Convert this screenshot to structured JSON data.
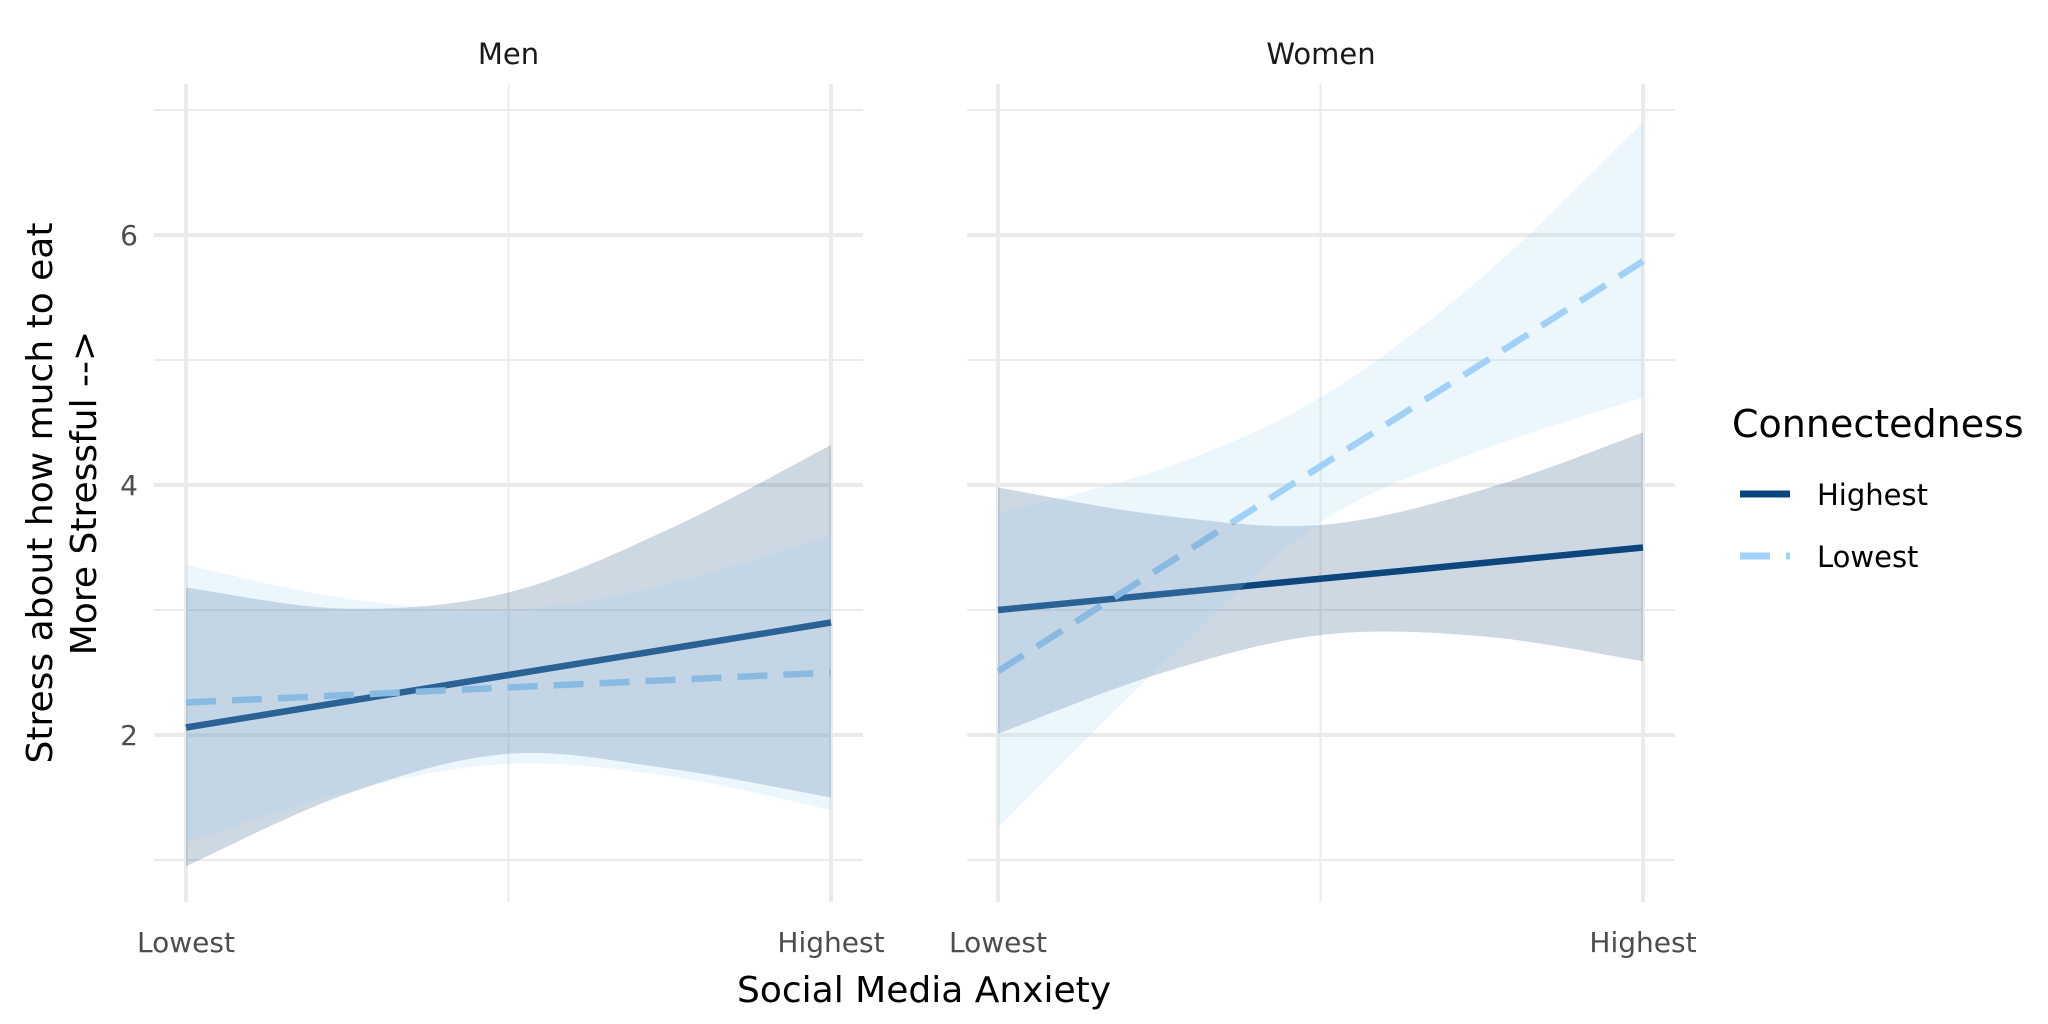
{
  "chart_data": {
    "type": "line",
    "subtype": "faceted regression lines with confidence ribbons",
    "title": "",
    "xlabel": "Social Media Anxiety",
    "ylabel": [
      "Stress about how much to eat",
      "More Stressful -->"
    ],
    "x_ticks": [
      "Lowest",
      "Highest"
    ],
    "x_range": [
      0,
      1
    ],
    "y_ticks": [
      2,
      4,
      6
    ],
    "y_minor_ticks": [
      1,
      3,
      5,
      7
    ],
    "ylim": [
      0.66,
      7.21
    ],
    "grid": true,
    "legend": {
      "title": "Connectedness",
      "placement": "right",
      "entries": [
        {
          "name": "Highest",
          "linetype": "solid",
          "color": "#08457e"
        },
        {
          "name": "Lowest",
          "linetype": "dashed",
          "color": "#a0d2fa"
        }
      ]
    },
    "x": [
      0,
      0.25,
      0.5,
      0.75,
      1
    ],
    "facets": [
      {
        "label": "Men",
        "series": [
          {
            "name": "Highest",
            "values": [
              2.06,
              2.27,
              2.48,
              2.69,
              2.9
            ],
            "lower": [
              0.95,
              1.53,
              1.85,
              1.73,
              1.5
            ],
            "upper": [
              3.18,
              3.01,
              3.14,
              3.65,
              4.32
            ]
          },
          {
            "name": "Lowest",
            "values": [
              2.26,
              2.32,
              2.38,
              2.44,
              2.5
            ],
            "lower": [
              1.14,
              1.55,
              1.77,
              1.67,
              1.4
            ],
            "upper": [
              3.36,
              3.09,
              3.0,
              3.21,
              3.6
            ]
          }
        ]
      },
      {
        "label": "Women",
        "series": [
          {
            "name": "Highest",
            "values": [
              3.0,
              3.125,
              3.25,
              3.375,
              3.5
            ],
            "lower": [
              2.01,
              2.49,
              2.8,
              2.79,
              2.59
            ],
            "upper": [
              3.98,
              3.76,
              3.68,
              3.96,
              4.42
            ]
          },
          {
            "name": "Lowest",
            "values": [
              2.51,
              3.33,
              4.15,
              4.97,
              5.79
            ],
            "lower": [
              1.26,
              2.54,
              3.7,
              4.28,
              4.7
            ],
            "upper": [
              3.78,
              4.12,
              4.7,
              5.66,
              6.9
            ]
          }
        ]
      }
    ],
    "colors": {
      "Highest_line": "#08457e",
      "Lowest_line": "#a0d2fa",
      "Highest_ribbon": "#1f4f7a",
      "Lowest_ribbon": "#9fd0f7",
      "grid": "#ebebeb"
    }
  }
}
